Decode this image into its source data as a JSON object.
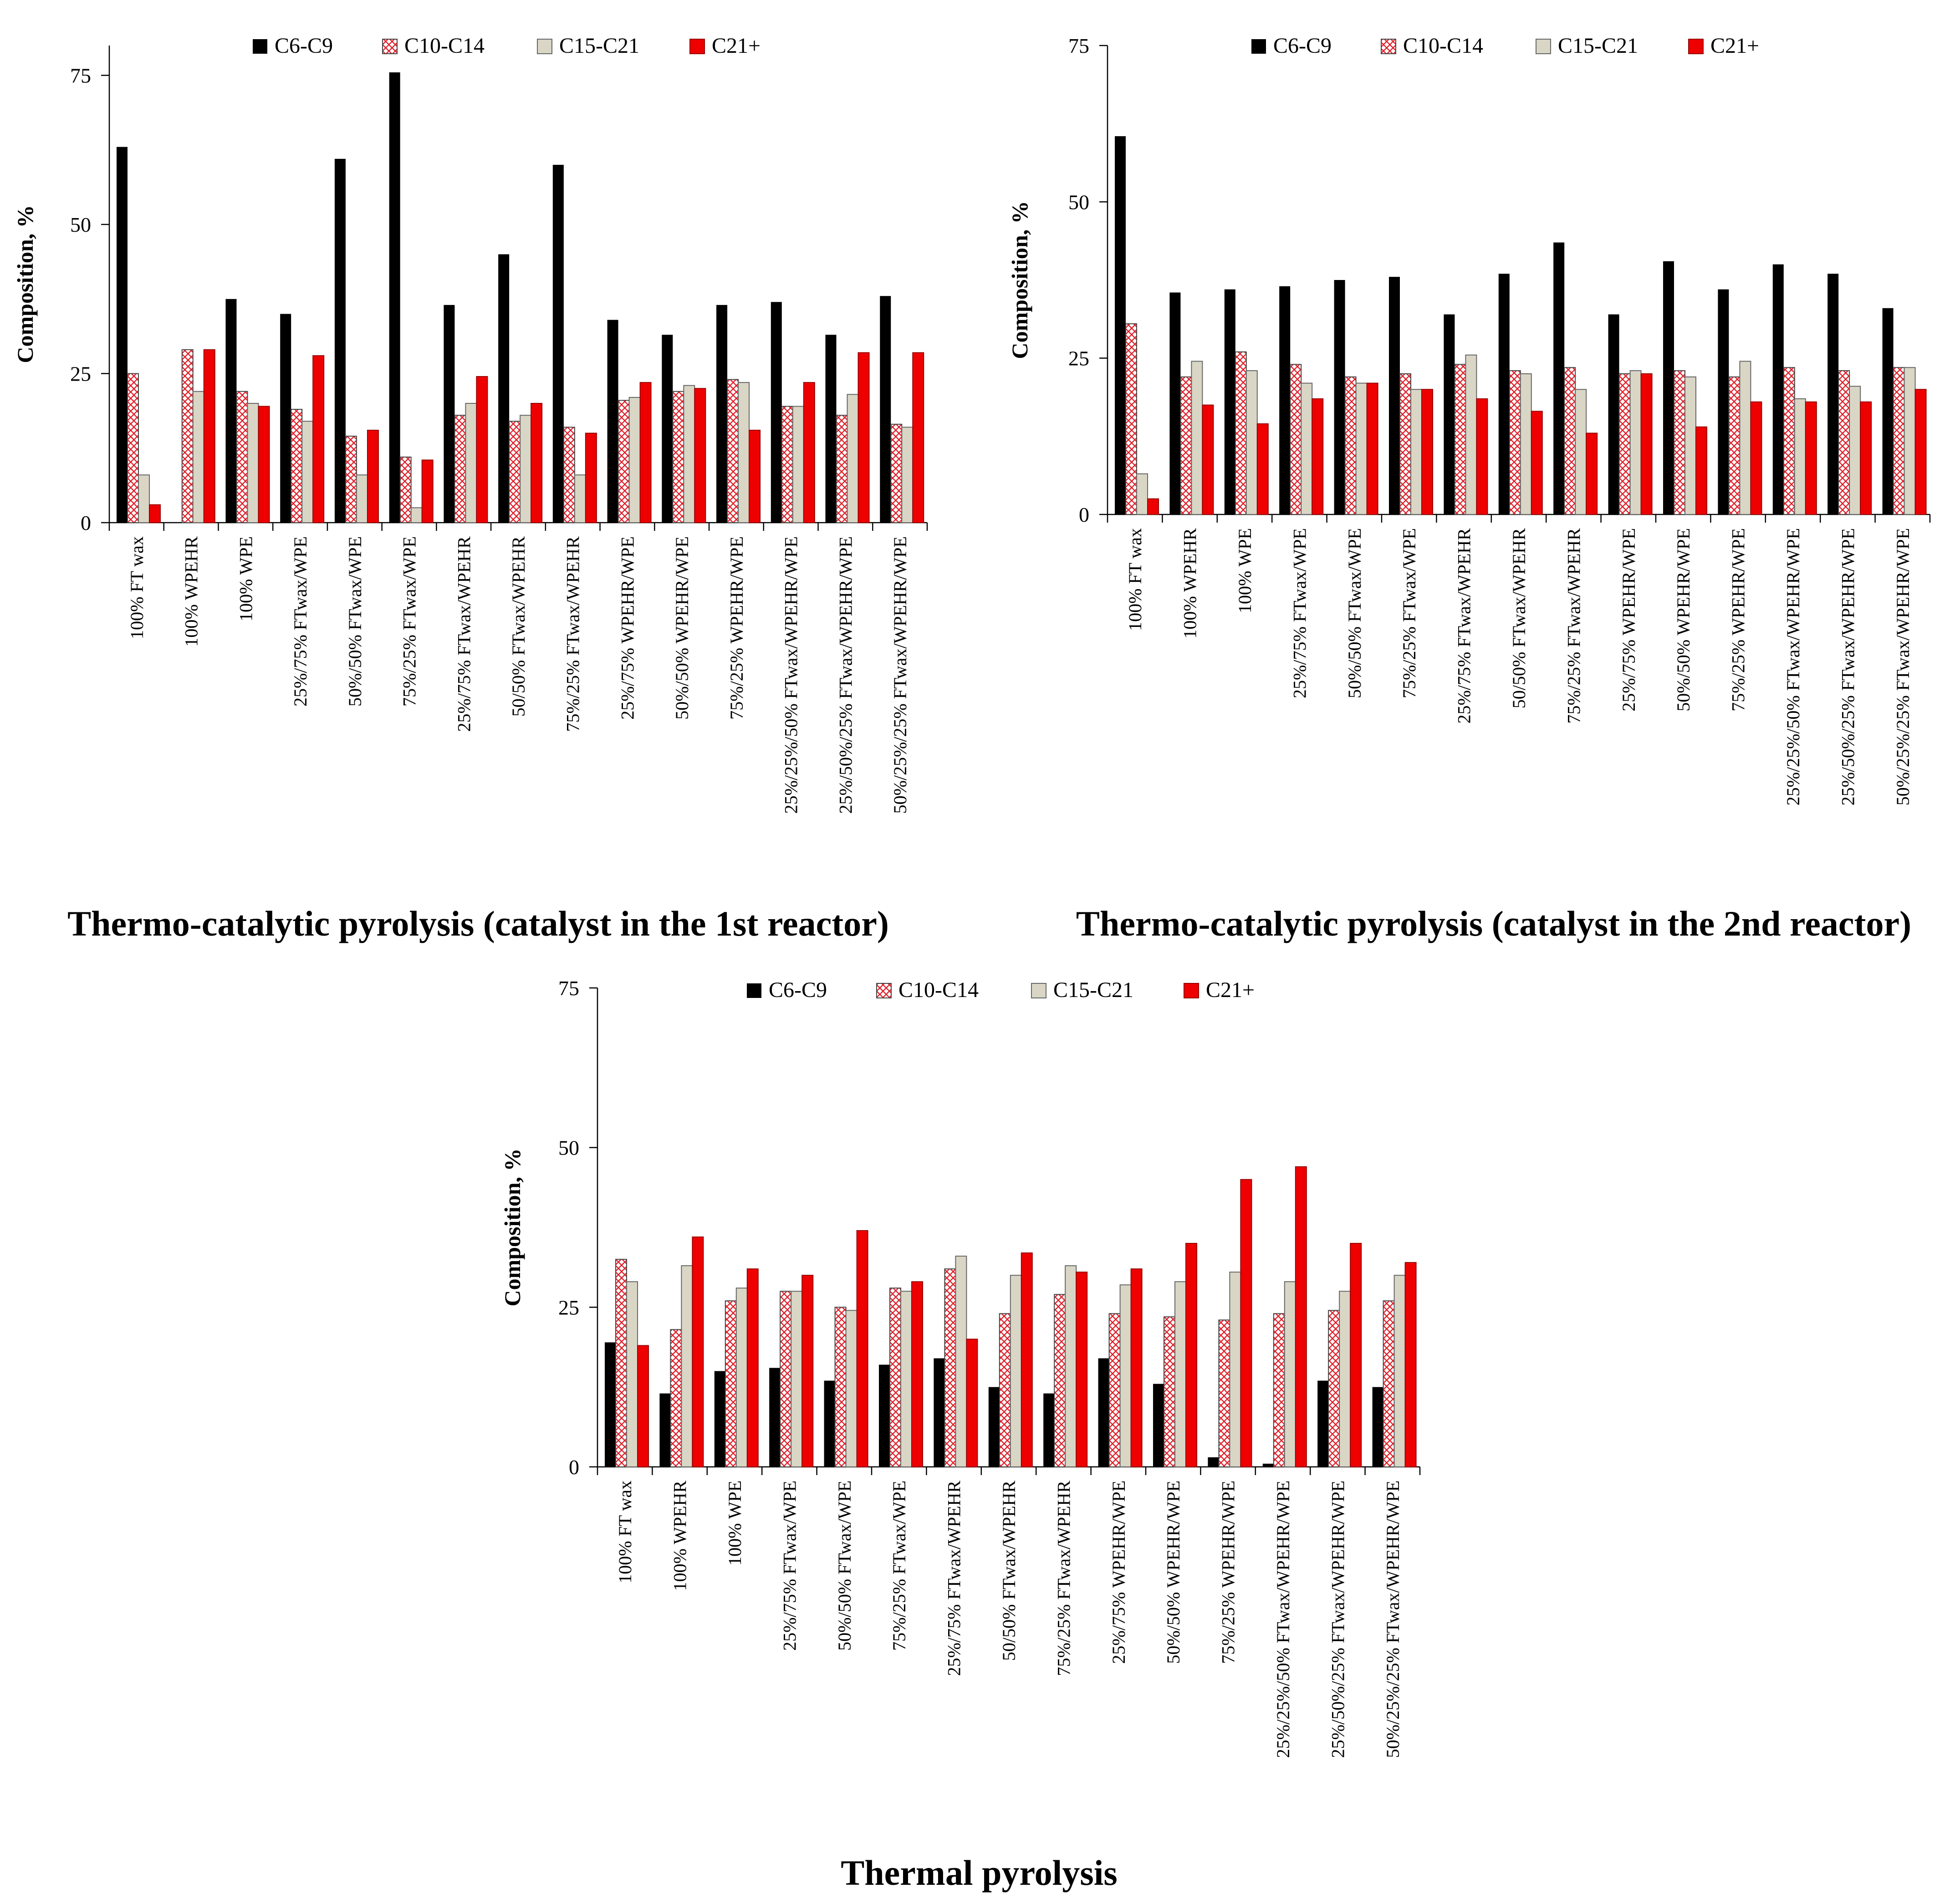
{
  "figure": {
    "legend": [
      "C6-C9",
      "C10-C14",
      "C15-C21",
      "C21+"
    ],
    "ylabel": "Composition, %"
  },
  "chart_data": [
    {
      "type": "bar",
      "title": "Thermo-catalytic pyrolysis (catalyst in the 1st reactor)",
      "ylabel": "Composition, %",
      "xlabel": "",
      "ylim": [
        0,
        80
      ],
      "yticks": [
        0,
        25,
        50,
        75
      ],
      "legend_position": "top",
      "categories": [
        "100% FT wax",
        "100% WPEHR",
        "100% WPE",
        "25%/75% FTwax/WPE",
        "50%/50% FTwax/WPE",
        "75%/25% FTwax/WPE",
        "25%/75% FTwax/WPEHR",
        "50/50% FTwax/WPEHR",
        "75%/25% FTwax/WPEHR",
        "25%/75% WPEHR/WPE",
        "50%/50% WPEHR/WPE",
        "75%/25% WPEHR/WPE",
        "25%/25%/50% FTwax/WPEHR/WPE",
        "25%/50%/25% FTwax/WPEHR/WPE",
        "50%/25%/25% FTwax/WPEHR/WPE"
      ],
      "series": [
        {
          "name": "C6-C9",
          "values": [
            63,
            0,
            37.5,
            35,
            61,
            75.5,
            36.5,
            45,
            60,
            34,
            31.5,
            36.5,
            37,
            31.5,
            38
          ]
        },
        {
          "name": "C10-C14",
          "values": [
            25,
            29,
            22,
            19,
            14.5,
            11,
            18,
            17,
            16,
            20.5,
            22,
            24,
            19.5,
            18,
            16.5
          ]
        },
        {
          "name": "C15-C21",
          "values": [
            8,
            22,
            20,
            17,
            8,
            2.5,
            20,
            18,
            8,
            21,
            23,
            23.5,
            19.5,
            21.5,
            16
          ]
        },
        {
          "name": "C21+",
          "values": [
            3,
            29,
            19.5,
            28,
            15.5,
            10.5,
            24.5,
            20,
            15,
            23.5,
            22.5,
            15.5,
            23.5,
            28.5,
            28.5
          ]
        }
      ]
    },
    {
      "type": "bar",
      "title": "Thermo-catalytic pyrolysis (catalyst in the 2nd reactor)",
      "ylabel": "Composition, %",
      "xlabel": "",
      "ylim": [
        0,
        75
      ],
      "yticks": [
        0,
        25,
        50,
        75
      ],
      "legend_position": "top",
      "categories": [
        "100% FT wax",
        "100% WPEHR",
        "100% WPE",
        "25%/75% FTwax/WPE",
        "50%/50% FTwax/WPE",
        "75%/25% FTwax/WPE",
        "25%/75% FTwax/WPEHR",
        "50/50% FTwax/WPEHR",
        "75%/25% FTwax/WPEHR",
        "25%/75% WPEHR/WPE",
        "50%/50% WPEHR/WPE",
        "75%/25% WPEHR/WPE",
        "25%/25%/50% FTwax/WPEHR/WPE",
        "25%/50%/25% FTwax/WPEHR/WPE",
        "50%/25%/25% FTwax/WPEHR/WPE"
      ],
      "series": [
        {
          "name": "C6-C9",
          "values": [
            60.5,
            35.5,
            36,
            36.5,
            37.5,
            38,
            32,
            38.5,
            43.5,
            32,
            40.5,
            36,
            40,
            38.5,
            33
          ]
        },
        {
          "name": "C10-C14",
          "values": [
            30.5,
            22,
            26,
            24,
            22,
            22.5,
            24,
            23,
            23.5,
            22.5,
            23,
            22,
            23.5,
            23,
            23.5
          ]
        },
        {
          "name": "C15-C21",
          "values": [
            6.5,
            24.5,
            23,
            21,
            21,
            20,
            25.5,
            22.5,
            20,
            23,
            22,
            24.5,
            18.5,
            20.5,
            23.5
          ]
        },
        {
          "name": "C21+",
          "values": [
            2.5,
            17.5,
            14.5,
            18.5,
            21,
            20,
            18.5,
            16.5,
            13,
            22.5,
            14,
            18,
            18,
            18,
            20
          ]
        }
      ]
    },
    {
      "type": "bar",
      "title": "Thermal pyrolysis",
      "ylabel": "Composition, %",
      "xlabel": "",
      "ylim": [
        0,
        75
      ],
      "yticks": [
        0,
        25,
        50,
        75
      ],
      "legend_position": "top",
      "categories": [
        "100% FT wax",
        "100% WPEHR",
        "100% WPE",
        "25%/75% FTwax/WPE",
        "50%/50% FTwax/WPE",
        "75%/25% FTwax/WPE",
        "25%/75% FTwax/WPEHR",
        "50/50% FTwax/WPEHR",
        "75%/25% FTwax/WPEHR",
        "25%/75% WPEHR/WPE",
        "50%/50% WPEHR/WPE",
        "75%/25% WPEHR/WPE",
        "25%/25%/50% FTwax/WPEHR/WPE",
        "25%/50%/25% FTwax/WPEHR/WPE",
        "50%/25%/25% FTwax/WPEHR/WPE"
      ],
      "series": [
        {
          "name": "C6-C9",
          "values": [
            19.5,
            11.5,
            15,
            15.5,
            13.5,
            16,
            17,
            12.5,
            11.5,
            17,
            13,
            1.5,
            0.5,
            13.5,
            12.5
          ]
        },
        {
          "name": "C10-C14",
          "values": [
            32.5,
            21.5,
            26,
            27.5,
            25,
            28,
            31,
            24,
            27,
            24,
            23.5,
            23,
            24,
            24.5,
            26
          ]
        },
        {
          "name": "C15-C21",
          "values": [
            29,
            31.5,
            28,
            27.5,
            24.5,
            27.5,
            33,
            30,
            31.5,
            28.5,
            29,
            30.5,
            29,
            27.5,
            30
          ]
        },
        {
          "name": "C21+",
          "values": [
            19,
            36,
            31,
            30,
            37,
            29,
            20,
            33.5,
            30.5,
            31,
            35,
            45,
            47,
            35,
            32
          ]
        }
      ]
    }
  ]
}
